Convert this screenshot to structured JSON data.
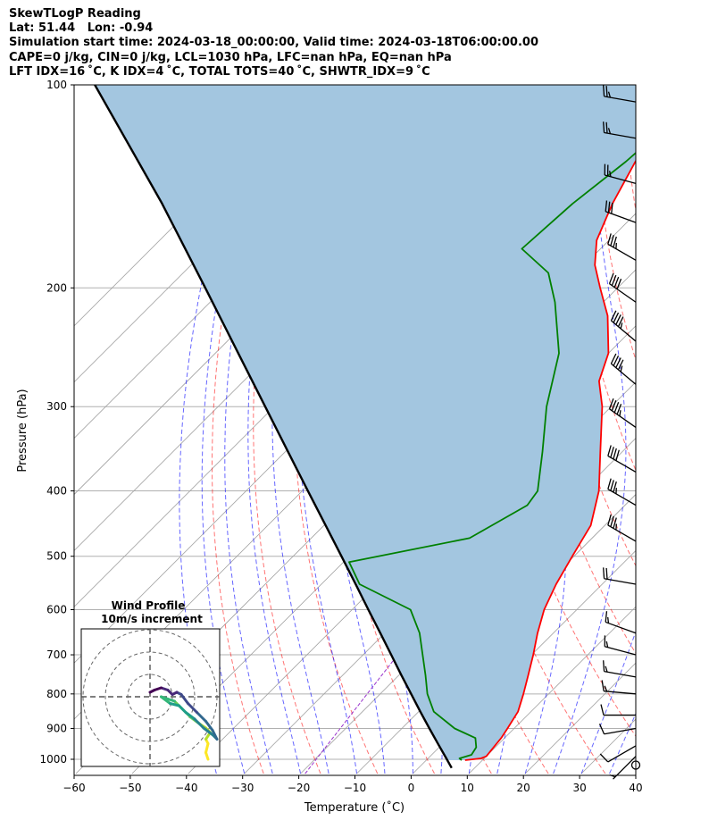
{
  "header": {
    "line1": "SkewTLogP Reading",
    "line2": "Lat: 51.44   Lon: -0.94",
    "line3": "Simulation start time: 2024-03-18_00:00:00, Valid time: 2024-03-18T06:00:00.00",
    "line4": "CAPE=0 j/kg, CIN=0 j/kg, LCL=1030 hPa, LFC=nan hPa, EQ=nan hPa",
    "line5": "LFT IDX=16 ˚C, K IDX=4 ˚C, TOTAL TOTS=40 ˚C, SHWTR_IDX=9 ˚C"
  },
  "chart_data": {
    "type": "line",
    "subtype": "skew-T log-P",
    "xlabel": "Temperature (˚C)",
    "ylabel": "Pressure (hPa)",
    "xlim": [
      -60,
      40
    ],
    "ylim": [
      1050,
      100
    ],
    "x_ticks": [
      -60,
      -50,
      -40,
      -30,
      -20,
      -10,
      0,
      10,
      20,
      30,
      40
    ],
    "y_ticks": [
      100,
      200,
      300,
      400,
      500,
      600,
      700,
      800,
      900,
      1000
    ],
    "grid": true,
    "colors": {
      "temperature": "#ff0000",
      "dewpoint": "#008000",
      "parcel": "#000000",
      "shade": "#a3c6e0",
      "dry_adiabat": "#ff0000",
      "moist_adiabat": "#0000ff",
      "isotherm": "#a0a0a0",
      "mixing_ratio": "#9932cc"
    },
    "series": [
      {
        "key": "temperature",
        "p": [
          1003,
          997,
          990,
          960,
          930,
          900,
          850,
          800,
          750,
          700,
          650,
          600,
          550,
          500,
          450,
          400,
          350,
          300,
          275,
          250,
          220,
          200,
          185,
          170,
          150,
          130,
          120,
          100
        ],
        "t": [
          6.9,
          9.4,
          10.0,
          9.7,
          9.4,
          8.8,
          7.7,
          5.5,
          3.0,
          0.3,
          -2.8,
          -5.8,
          -8.2,
          -10.3,
          -12.5,
          -17.2,
          -23.9,
          -31.6,
          -36.7,
          -40.0,
          -46.8,
          -53.1,
          -58.1,
          -62.2,
          -65.9,
          -69.3,
          -70.7,
          -72.7
        ]
      },
      {
        "key": "dewpoint",
        "p": [
          1003,
          997,
          985,
          960,
          930,
          900,
          850,
          800,
          750,
          700,
          650,
          600,
          550,
          510,
          470,
          420,
          400,
          350,
          300,
          250,
          210,
          190,
          175,
          150,
          130,
          100
        ],
        "t": [
          6.3,
          5.6,
          7.1,
          6.6,
          4.8,
          -0.6,
          -7.3,
          -11.6,
          -15.3,
          -19.4,
          -23.8,
          -29.6,
          -43.2,
          -49.0,
          -31.8,
          -27.4,
          -28.1,
          -34.2,
          -41.5,
          -48.8,
          -58.6,
          -65.0,
          -74.0,
          -73.0,
          -71.0,
          -69.0
        ]
      },
      {
        "key": "parcel",
        "p": [
          1030,
          1000,
          950,
          900,
          850,
          800,
          750,
          700,
          650,
          600,
          550,
          500,
          450,
          400,
          350,
          300,
          250,
          200,
          150,
          100
        ],
        "t": [
          5.9,
          3.5,
          -0.7,
          -5.1,
          -9.7,
          -14.5,
          -19.6,
          -25.0,
          -30.8,
          -37.1,
          -43.9,
          -51.4,
          -59.7,
          -69.0,
          -79.5,
          -91.6,
          -105.9,
          -123.4,
          -146.1,
          -179.2
        ]
      }
    ],
    "wind_barbs": {
      "x": 40,
      "p": [
        1020,
        990,
        955,
        900,
        860,
        800,
        755,
        700,
        650,
        550,
        475,
        420,
        375,
        322,
        278,
        240,
        210,
        182,
        160,
        140,
        120,
        106
      ],
      "speed_kt": [
        0,
        5,
        10,
        10,
        10,
        15,
        15,
        15,
        15,
        20,
        35,
        35,
        40,
        45,
        45,
        45,
        40,
        35,
        30,
        25,
        25,
        25
      ],
      "dir_deg": [
        0,
        225,
        240,
        260,
        270,
        275,
        280,
        285,
        290,
        280,
        300,
        300,
        300,
        305,
        310,
        310,
        305,
        300,
        290,
        285,
        280,
        280
      ]
    },
    "hodograph": {
      "title": "Wind Profile",
      "subtitle": "10m/s increment",
      "rings_ms": [
        10,
        20,
        30
      ],
      "points": [
        {
          "u": 26,
          "v": -28
        },
        {
          "u": 25,
          "v": -25
        },
        {
          "u": 26,
          "v": -21
        },
        {
          "u": 25,
          "v": -19
        },
        {
          "u": 27,
          "v": -16
        },
        {
          "u": 25,
          "v": -14
        },
        {
          "u": 22,
          "v": -12
        },
        {
          "u": 18,
          "v": -9
        },
        {
          "u": 14,
          "v": -5
        },
        {
          "u": 11,
          "v": -2
        },
        {
          "u": 8,
          "v": -1
        },
        {
          "u": 5,
          "v": 0
        },
        {
          "u": 9,
          "v": -3
        },
        {
          "u": 13,
          "v": -4
        },
        {
          "u": 16,
          "v": -7
        },
        {
          "u": 20,
          "v": -10
        },
        {
          "u": 24,
          "v": -14
        },
        {
          "u": 28,
          "v": -17
        },
        {
          "u": 30,
          "v": -19
        },
        {
          "u": 28,
          "v": -15
        },
        {
          "u": 25,
          "v": -11
        },
        {
          "u": 21,
          "v": -7
        },
        {
          "u": 17,
          "v": -3
        },
        {
          "u": 14,
          "v": 1
        },
        {
          "u": 12,
          "v": 2
        },
        {
          "u": 10,
          "v": 1
        },
        {
          "u": 8,
          "v": 3
        },
        {
          "u": 5,
          "v": 4
        },
        {
          "u": 2,
          "v": 3
        },
        {
          "u": 0,
          "v": 2
        }
      ]
    }
  }
}
